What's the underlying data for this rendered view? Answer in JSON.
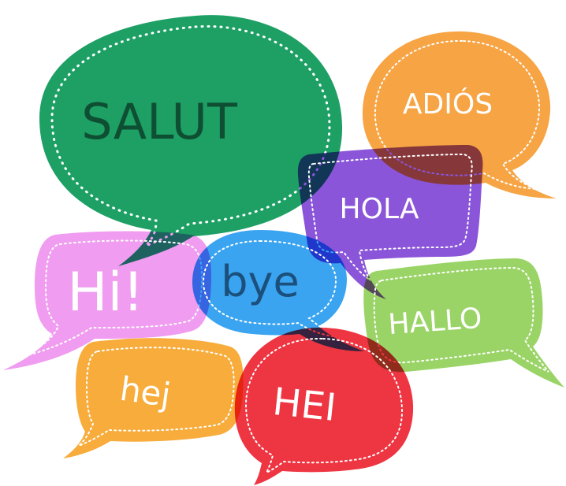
{
  "bubbles": {
    "salut": {
      "label": "SALUT",
      "color": "#1ea065",
      "text_color": "#0e4f33"
    },
    "adios": {
      "label": "ADIÓS",
      "color": "#f7a444",
      "text_color": "#ffffff"
    },
    "hola": {
      "label": "HOLA",
      "color": "#8a55d9",
      "text_color": "#ffffff"
    },
    "hi": {
      "label": "Hi!",
      "color": "#f09cf0",
      "text_color": "#ffffff"
    },
    "bye": {
      "label": "bye",
      "color": "#3aa4f0",
      "text_color": "#1b4f7c"
    },
    "hallo": {
      "label": "HALLO",
      "color": "#9ad467",
      "text_color": "#ffffff"
    },
    "hej": {
      "label": "hej",
      "color": "#f7ac3c",
      "text_color": "#ffffff"
    },
    "hei": {
      "label": "HEI",
      "color": "#ee3542",
      "text_color": "#ffffff"
    }
  }
}
